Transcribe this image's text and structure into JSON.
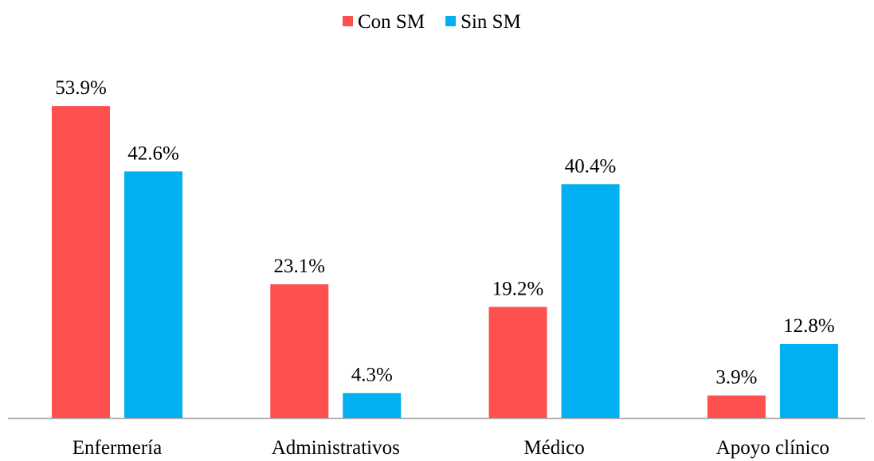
{
  "chart_data": {
    "type": "bar",
    "categories": [
      "Enfermería",
      "Administrativos",
      "Médico",
      "Apoyo clínico"
    ],
    "series": [
      {
        "name": "Con SM",
        "color": "#ff5050",
        "values": [
          53.9,
          23.1,
          19.2,
          3.9
        ],
        "value_labels": [
          "53.9%",
          "23.1%",
          "19.2%",
          "3.9%"
        ]
      },
      {
        "name": "Sin SM",
        "color": "#00b0f0",
        "values": [
          42.6,
          4.3,
          40.4,
          12.8
        ],
        "value_labels": [
          "42.6%",
          "4.3%",
          "40.4%",
          "12.8%"
        ]
      }
    ],
    "legend": "top"
  }
}
